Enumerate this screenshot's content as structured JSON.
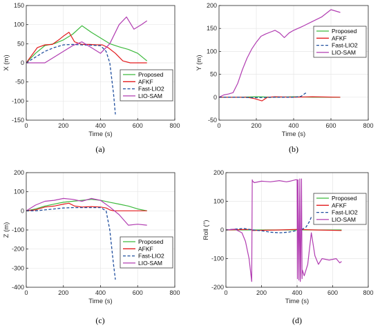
{
  "colors": {
    "Proposed": "#3cb93c",
    "AFKF": "#e31a1c",
    "Fast-LIO2": "#1f4e9e",
    "LIO-SAM": "#b13cb1",
    "axis": "#262626",
    "grid": "#e6e6e6"
  },
  "chart_data": [
    {
      "type": "line",
      "caption": "(a)",
      "xlabel": "Time (s)",
      "ylabel": "X (m)",
      "xlim": [
        0,
        800
      ],
      "ylim": [
        -150,
        150
      ],
      "xticks": [
        0,
        200,
        400,
        600,
        800
      ],
      "yticks": [
        -150,
        -100,
        -50,
        0,
        50,
        100,
        150
      ],
      "grid": true,
      "legend_position": "lower-right",
      "series": [
        {
          "name": "Proposed",
          "style": "solid",
          "x": [
            0,
            50,
            100,
            150,
            200,
            250,
            300,
            350,
            400,
            450,
            500,
            550,
            600,
            650
          ],
          "y": [
            0,
            25,
            45,
            50,
            60,
            75,
            97,
            80,
            65,
            50,
            42,
            35,
            25,
            5
          ]
        },
        {
          "name": "AFKF",
          "style": "solid",
          "x": [
            0,
            30,
            60,
            100,
            140,
            180,
            200,
            230,
            260,
            300,
            340,
            380,
            410,
            440,
            480,
            520,
            560,
            600,
            650
          ],
          "y": [
            0,
            20,
            40,
            47,
            48,
            62,
            70,
            80,
            55,
            48,
            48,
            47,
            47,
            40,
            25,
            5,
            0,
            0,
            0
          ]
        },
        {
          "name": "Fast-LIO2",
          "style": "dashed",
          "x": [
            0,
            50,
            100,
            150,
            200,
            250,
            300,
            350,
            400,
            430,
            450,
            470,
            480
          ],
          "y": [
            0,
            15,
            30,
            40,
            47,
            48,
            47,
            46,
            45,
            30,
            0,
            -80,
            -135
          ]
        },
        {
          "name": "LIO-SAM",
          "style": "solid",
          "x": [
            0,
            50,
            100,
            150,
            200,
            250,
            300,
            350,
            400,
            450,
            500,
            540,
            580,
            620,
            650
          ],
          "y": [
            0,
            0,
            0,
            15,
            30,
            45,
            55,
            40,
            25,
            50,
            100,
            120,
            88,
            100,
            110
          ]
        }
      ]
    },
    {
      "type": "line",
      "caption": "(b)",
      "xlabel": "Time (s)",
      "ylabel": "Y (m)",
      "xlim": [
        0,
        800
      ],
      "ylim": [
        -50,
        200
      ],
      "xticks": [
        0,
        200,
        400,
        600,
        800
      ],
      "yticks": [
        -50,
        0,
        50,
        100,
        150,
        200
      ],
      "grid": true,
      "legend_position": "top-right",
      "series": [
        {
          "name": "Proposed",
          "style": "solid",
          "x": [
            0,
            100,
            200,
            300,
            400,
            500,
            600,
            650
          ],
          "y": [
            0,
            0,
            1,
            0,
            1,
            0,
            0,
            0
          ]
        },
        {
          "name": "AFKF",
          "style": "solid",
          "x": [
            0,
            150,
            190,
            230,
            260,
            300,
            400,
            500,
            650
          ],
          "y": [
            0,
            0,
            -3,
            -8,
            0,
            1,
            0,
            1,
            0
          ]
        },
        {
          "name": "Fast-LIO2",
          "style": "dashed",
          "x": [
            0,
            100,
            200,
            300,
            400,
            440,
            460,
            470
          ],
          "y": [
            0,
            0,
            -1,
            0,
            0,
            2,
            8,
            10
          ]
        },
        {
          "name": "LIO-SAM",
          "style": "solid",
          "x": [
            0,
            25,
            50,
            75,
            100,
            125,
            150,
            175,
            200,
            225,
            250,
            275,
            300,
            325,
            350,
            375,
            400,
            450,
            500,
            550,
            600,
            625,
            650
          ],
          "y": [
            0,
            5,
            7,
            10,
            30,
            60,
            85,
            105,
            120,
            133,
            138,
            142,
            146,
            140,
            130,
            140,
            146,
            155,
            165,
            175,
            191,
            188,
            185
          ]
        }
      ]
    },
    {
      "type": "line",
      "caption": "(c)",
      "xlabel": "Time (s)",
      "ylabel": "Z (m)",
      "xlim": [
        0,
        800
      ],
      "ylim": [
        -400,
        200
      ],
      "xticks": [
        0,
        200,
        400,
        600,
        800
      ],
      "yticks": [
        -400,
        -300,
        -200,
        -100,
        0,
        100,
        200
      ],
      "grid": true,
      "legend_position": "lower-right",
      "series": [
        {
          "name": "Proposed",
          "style": "solid",
          "x": [
            0,
            50,
            100,
            150,
            200,
            250,
            300,
            350,
            400,
            450,
            500,
            550,
            600,
            650
          ],
          "y": [
            0,
            10,
            25,
            35,
            45,
            50,
            55,
            60,
            55,
            45,
            35,
            25,
            10,
            0
          ]
        },
        {
          "name": "AFKF",
          "style": "solid",
          "x": [
            0,
            50,
            100,
            150,
            200,
            230,
            260,
            300,
            350,
            400,
            430,
            450,
            470,
            500,
            550,
            650
          ],
          "y": [
            0,
            5,
            20,
            25,
            35,
            40,
            25,
            20,
            22,
            20,
            15,
            5,
            0,
            0,
            0,
            0
          ]
        },
        {
          "name": "Fast-LIO2",
          "style": "dashed",
          "x": [
            0,
            50,
            100,
            150,
            200,
            250,
            300,
            350,
            400,
            430,
            450,
            470,
            480
          ],
          "y": [
            0,
            0,
            5,
            10,
            15,
            17,
            17,
            17,
            17,
            0,
            -100,
            -280,
            -360
          ]
        },
        {
          "name": "LIO-SAM",
          "style": "solid",
          "x": [
            0,
            50,
            100,
            150,
            200,
            250,
            300,
            350,
            400,
            450,
            500,
            550,
            600,
            650
          ],
          "y": [
            0,
            30,
            50,
            55,
            65,
            60,
            50,
            65,
            55,
            20,
            -20,
            -75,
            -70,
            -75
          ]
        }
      ]
    },
    {
      "type": "line",
      "caption": "(d)",
      "xlabel": "Time (s)",
      "ylabel": "Roll (°)",
      "xlim": [
        0,
        800
      ],
      "ylim": [
        -200,
        200
      ],
      "xticks": [
        0,
        200,
        400,
        600,
        800
      ],
      "yticks": [
        -200,
        -100,
        0,
        100,
        200
      ],
      "grid": true,
      "legend_position": "top-right",
      "series": [
        {
          "name": "Proposed",
          "style": "solid",
          "x": [
            0,
            100,
            200,
            300,
            400,
            500,
            650
          ],
          "y": [
            0,
            0,
            0,
            0,
            0,
            0,
            0
          ]
        },
        {
          "name": "AFKF",
          "style": "solid",
          "x": [
            0,
            140,
            150,
            300,
            400,
            500,
            650
          ],
          "y": [
            0,
            2,
            -2,
            0,
            2,
            0,
            -2
          ]
        },
        {
          "name": "Fast-LIO2",
          "style": "dashed",
          "x": [
            0,
            50,
            100,
            150,
            200,
            250,
            300,
            350,
            400,
            430,
            450,
            470,
            480
          ],
          "y": [
            0,
            3,
            5,
            0,
            -3,
            -8,
            -10,
            -8,
            -2,
            3,
            10,
            30,
            45
          ]
        },
        {
          "name": "LIO-SAM",
          "style": "solid",
          "x": [
            0,
            50,
            90,
            110,
            130,
            145,
            148,
            150,
            160,
            200,
            250,
            300,
            340,
            360,
            390,
            400,
            402,
            405,
            410,
            415,
            418,
            420,
            425,
            428,
            430,
            440,
            460,
            480,
            500,
            520,
            540,
            580,
            620,
            640,
            650
          ],
          "y": [
            0,
            3,
            -10,
            -40,
            -100,
            -180,
            175,
            170,
            165,
            170,
            168,
            172,
            168,
            170,
            175,
            175,
            -170,
            175,
            -175,
            178,
            -180,
            -150,
            178,
            -170,
            -140,
            -160,
            -120,
            -10,
            -90,
            -120,
            -100,
            -105,
            -100,
            -115,
            -110
          ]
        }
      ]
    }
  ]
}
